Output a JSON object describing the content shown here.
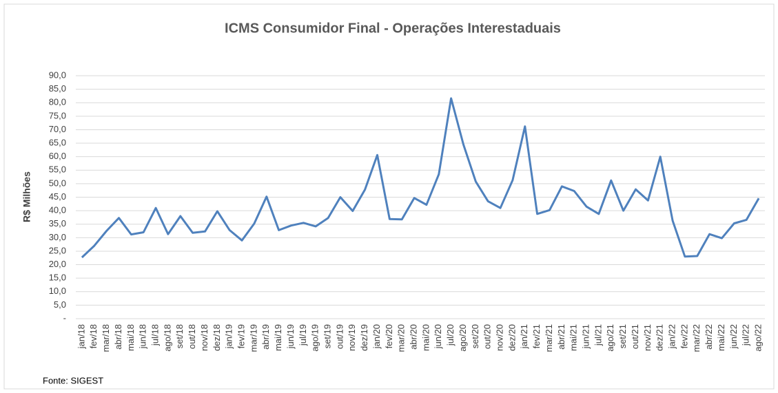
{
  "chart_data": {
    "type": "line",
    "title": "ICMS Consumidor Final - Operações Interestaduais",
    "y_label": "R$ Milhões",
    "source": "Fonte: SIGEST",
    "categories": [
      "jan/18",
      "fev/18",
      "mar/18",
      "abr/18",
      "mai/18",
      "jun/18",
      "jul/18",
      "ago/18",
      "set/18",
      "out/18",
      "nov/18",
      "dez/18",
      "jan/19",
      "fev/19",
      "mar/19",
      "abr/19",
      "mai/19",
      "jun/19",
      "jul/19",
      "ago/19",
      "set/19",
      "out/19",
      "nov/19",
      "dez/19",
      "jan/20",
      "fev/20",
      "mar/20",
      "abr/20",
      "mai/20",
      "jun/20",
      "jul/20",
      "ago/20",
      "set/20",
      "out/20",
      "nov/20",
      "dez/20",
      "jan/21",
      "fev/21",
      "mar/21",
      "abr/21",
      "mai/21",
      "jun/21",
      "jul/21",
      "ago/21",
      "set/21",
      "out/21",
      "nov/21",
      "dez/21",
      "jan/22",
      "fev/22",
      "mar/22",
      "abr/22",
      "mai/22",
      "jun/22",
      "jul/22",
      "ago/22"
    ],
    "series": [
      {
        "name": "ICMS",
        "color": "#4f81bd",
        "values": [
          22.7,
          27,
          32.5,
          37.3,
          31.2,
          32,
          41,
          31.3,
          38,
          31.8,
          32.3,
          39.8,
          32.8,
          29,
          35.2,
          45.2,
          32.8,
          34.5,
          35.5,
          34.2,
          37.3,
          45,
          39.9,
          47.8,
          60.6,
          36.9,
          36.8,
          44.7,
          42.2,
          53.5,
          81.6,
          64.5,
          50.8,
          43.5,
          41,
          51.3,
          71.2,
          38.8,
          40.2,
          49,
          47.3,
          41.5,
          38.8,
          51.2,
          40,
          47.9,
          43.8,
          60,
          36.3,
          23,
          23.2,
          31.3,
          29.8,
          35.3,
          36.6,
          44.6
        ]
      }
    ],
    "ylim": [
      0,
      90
    ],
    "yticks": [
      {
        "value": 0,
        "label": "-"
      },
      {
        "value": 5,
        "label": "5,0"
      },
      {
        "value": 10,
        "label": "10,0"
      },
      {
        "value": 15,
        "label": "15,0"
      },
      {
        "value": 20,
        "label": "20,0"
      },
      {
        "value": 25,
        "label": "25,0"
      },
      {
        "value": 30,
        "label": "30,0"
      },
      {
        "value": 35,
        "label": "35,0"
      },
      {
        "value": 40,
        "label": "40,0"
      },
      {
        "value": 45,
        "label": "45,0"
      },
      {
        "value": 50,
        "label": "50,0"
      },
      {
        "value": 55,
        "label": "55,0"
      },
      {
        "value": 60,
        "label": "60,0"
      },
      {
        "value": 65,
        "label": "65,0"
      },
      {
        "value": 70,
        "label": "70,0"
      },
      {
        "value": 75,
        "label": "75,0"
      },
      {
        "value": 80,
        "label": "80,0"
      },
      {
        "value": 85,
        "label": "85,0"
      },
      {
        "value": 90,
        "label": "90,0"
      }
    ],
    "grid": true
  }
}
